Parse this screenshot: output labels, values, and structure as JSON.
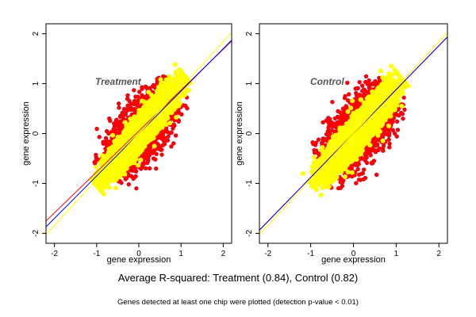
{
  "footer": {
    "summary": "Average R-squared: Treatment (0.84), Control (0.82)",
    "note": "Genes detected at least one chip were plotted (detection p-value < 0.01)"
  },
  "colors": {
    "core": "#ffff00",
    "mid": "#ff0000",
    "outer": "#0000ff",
    "line_red": "#ff0000",
    "line_blue": "#0000ff",
    "line_yellow": "#ffff00"
  },
  "chart_data": [
    {
      "type": "scatter",
      "label": "Treatment",
      "xlabel": "gene expression",
      "ylabel": "gene expression",
      "xlim": [
        -2.2,
        2.2
      ],
      "ylim": [
        -2.2,
        2.2
      ],
      "x_ticks": [
        -2,
        -1,
        0,
        1,
        2
      ],
      "y_ticks": [
        -2,
        -1,
        0,
        1,
        2
      ],
      "x_tick_labels": [
        "-2",
        "-1",
        "0",
        "1",
        "2"
      ],
      "y_tick_labels": [
        "-2",
        "-1",
        "0",
        "1",
        "2"
      ],
      "grid": false,
      "point_cloud": {
        "x_range": [
          -1.05,
          1.15
        ],
        "y_range": [
          -1.1,
          1.2
        ],
        "correlation": 0.92,
        "layers": [
          "#0000ff",
          "#ff0000",
          "#ffff00"
        ]
      },
      "lines": [
        {
          "color": "#ff0000",
          "intercept": 0.05,
          "slope": 0.82
        },
        {
          "color": "#0000ff",
          "intercept": 0.0,
          "slope": 0.85
        },
        {
          "color": "#ffff00",
          "intercept": 0.0,
          "slope": 0.92
        }
      ]
    },
    {
      "type": "scatter",
      "label": "Control",
      "xlabel": "gene expression",
      "ylabel": "gene expression",
      "xlim": [
        -2.2,
        2.2
      ],
      "ylim": [
        -2.2,
        2.2
      ],
      "x_ticks": [
        -2,
        -1,
        0,
        1,
        2
      ],
      "y_ticks": [
        -2,
        -1,
        0,
        1,
        2
      ],
      "x_tick_labels": [
        "-2",
        "-1",
        "0",
        "1",
        "2"
      ],
      "y_tick_labels": [
        "-2",
        "-1",
        "0",
        "1",
        "2"
      ],
      "grid": false,
      "point_cloud": {
        "x_range": [
          -1.0,
          1.2
        ],
        "y_range": [
          -1.1,
          1.15
        ],
        "correlation": 0.9,
        "layers": [
          "#0000ff",
          "#ff0000",
          "#ffff00"
        ]
      },
      "lines": [
        {
          "color": "#ff0000",
          "intercept": 0.0,
          "slope": 0.88
        },
        {
          "color": "#0000ff",
          "intercept": 0.0,
          "slope": 0.88
        },
        {
          "color": "#ffff00",
          "intercept": 0.0,
          "slope": 0.92
        }
      ]
    }
  ]
}
